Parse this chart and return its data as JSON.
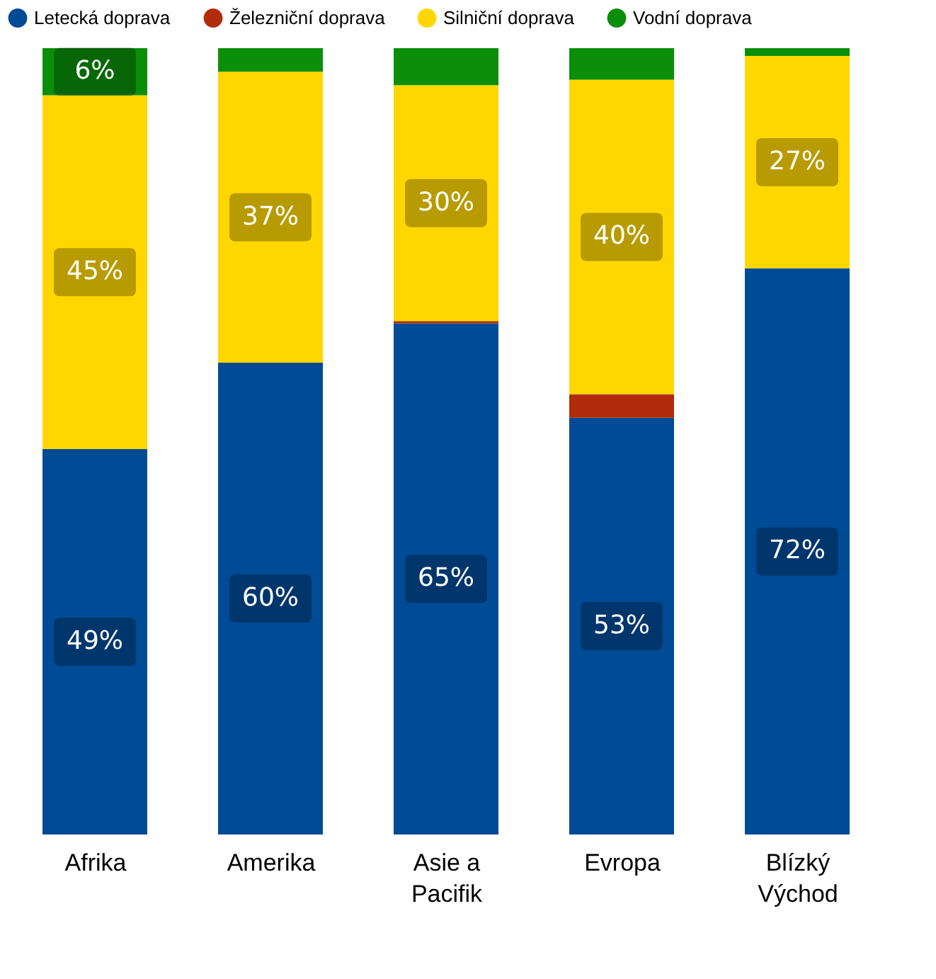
{
  "chart_data": {
    "type": "bar",
    "stacked": true,
    "legend": "top",
    "grid": false,
    "categories": [
      "Afrika",
      "Amerika",
      "Asie a Pacifik",
      "Evropa",
      "Blízký Východ"
    ],
    "series": [
      {
        "name": "Letecká doprava",
        "color": "#004b96",
        "values": [
          49,
          60,
          65,
          53,
          72
        ],
        "value_labels": [
          "49%",
          "60%",
          "65%",
          "53%",
          "72%"
        ]
      },
      {
        "name": "Železniční doprava",
        "color": "#b22b0a",
        "values": [
          0,
          0,
          0.3,
          3,
          0
        ],
        "value_labels": [
          null,
          null,
          null,
          null,
          null
        ]
      },
      {
        "name": "Silniční doprava",
        "color": "#ffd700",
        "values": [
          45,
          37,
          30,
          40,
          27
        ],
        "value_labels": [
          "45%",
          "37%",
          "30%",
          "40%",
          "27%"
        ]
      },
      {
        "name": "Vodní doprava",
        "color": "#0b8f0b",
        "values": [
          6,
          3,
          4.7,
          4,
          1
        ],
        "value_labels": [
          "6%",
          null,
          null,
          null,
          null
        ]
      }
    ]
  }
}
